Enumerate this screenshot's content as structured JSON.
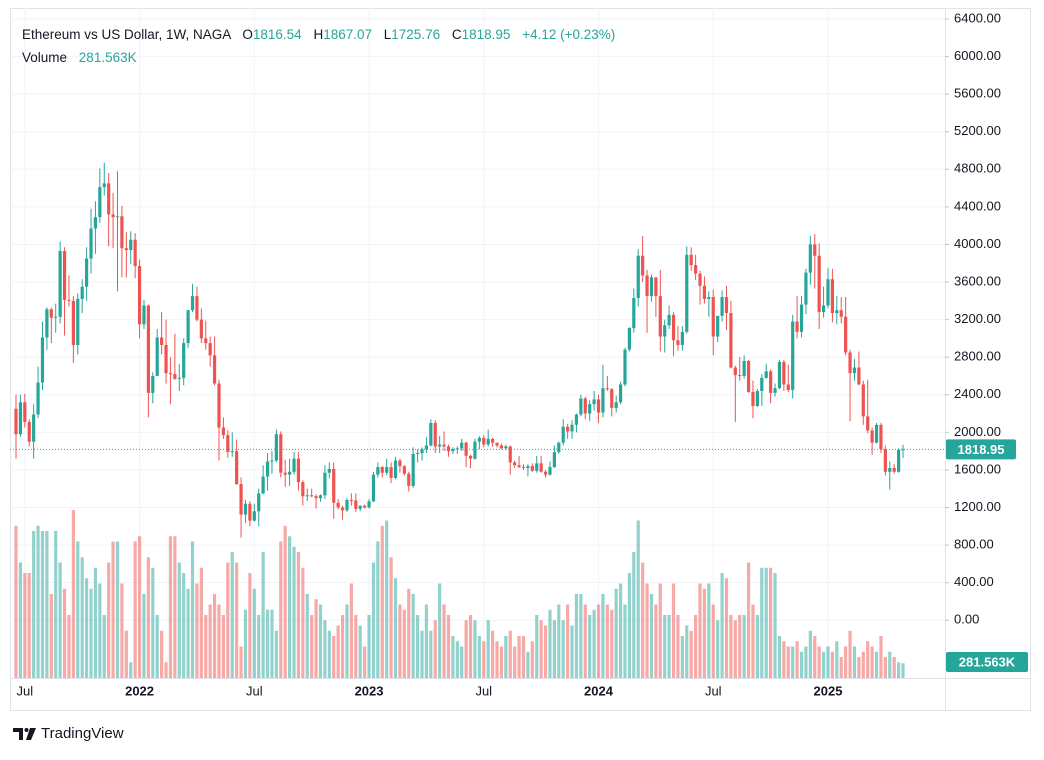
{
  "chart_data": {
    "type": "candlestick",
    "title": "Ethereum vs US Dollar, 1W, NAGA",
    "ohlc_labels": {
      "open": "O",
      "high": "H",
      "low": "L",
      "close": "C"
    },
    "change": "+4.12 (+0.23%)",
    "colors": {
      "up": "#26a69a",
      "down": "#ef5350"
    },
    "ylim": [
      -615,
      6517
    ],
    "yticks": [
      {
        "value": 0,
        "label": "0.00"
      },
      {
        "value": 400,
        "label": "400.00"
      },
      {
        "value": 800,
        "label": "800.00"
      },
      {
        "value": 1200,
        "label": "1200.00"
      },
      {
        "value": 1600,
        "label": "1600.00"
      },
      {
        "value": 2000,
        "label": "2000.00"
      },
      {
        "value": 2400,
        "label": "2400.00"
      },
      {
        "value": 2800,
        "label": "2800.00"
      },
      {
        "value": 3200,
        "label": "3200.00"
      },
      {
        "value": 3600,
        "label": "3600.00"
      },
      {
        "value": 4000,
        "label": "4000.00"
      },
      {
        "value": 4400,
        "label": "4400.00"
      },
      {
        "value": 4800,
        "label": "4800.00"
      },
      {
        "value": 5200,
        "label": "5200.00"
      },
      {
        "value": 5600,
        "label": "5600.00"
      },
      {
        "value": 6000,
        "label": "6000.00"
      },
      {
        "value": 6400,
        "label": "6400.00"
      }
    ],
    "grid": true,
    "categories": [
      null,
      null,
      "Jul",
      null,
      null,
      null,
      null,
      null,
      null,
      null,
      null,
      null,
      null,
      null,
      null,
      null,
      null,
      null,
      null,
      null,
      null,
      null,
      null,
      null,
      null,
      null,
      null,
      null,
      "2022",
      null,
      null,
      null,
      null,
      null,
      null,
      null,
      null,
      null,
      null,
      null,
      null,
      null,
      null,
      null,
      null,
      null,
      null,
      null,
      null,
      null,
      null,
      null,
      null,
      null,
      "Jul",
      null,
      null,
      null,
      null,
      null,
      null,
      null,
      null,
      null,
      null,
      null,
      null,
      null,
      null,
      null,
      null,
      null,
      null,
      null,
      null,
      null,
      null,
      null,
      null,
      null,
      "2023",
      null,
      null,
      null,
      null,
      null,
      null,
      null,
      null,
      null,
      null,
      null,
      null,
      null,
      null,
      null,
      null,
      null,
      null,
      null,
      null,
      null,
      null,
      null,
      null,
      null,
      "Jul",
      null,
      null,
      null,
      null,
      null,
      null,
      null,
      null,
      null,
      null,
      null,
      null,
      null,
      null,
      null,
      null,
      null,
      null,
      null,
      null,
      null,
      null,
      null,
      null,
      null,
      "2024",
      null,
      null,
      null,
      null,
      null,
      null,
      null,
      null,
      null,
      null,
      null,
      null,
      null,
      null,
      null,
      null,
      null,
      null,
      null,
      null,
      null,
      null,
      null,
      null,
      null,
      "Jul",
      null,
      null,
      null,
      null,
      null,
      null,
      null,
      null,
      null,
      null,
      null,
      null,
      null,
      null,
      null,
      null,
      null,
      null,
      null,
      null,
      null,
      null,
      null,
      null,
      null,
      "2025",
      null,
      null,
      null,
      null,
      null,
      null,
      null,
      null,
      null,
      null,
      null,
      null,
      null,
      null,
      null,
      null,
      null
    ],
    "open": [
      2250,
      1980,
      2320,
      2110,
      1900,
      2190,
      2530,
      3010,
      3310,
      3220,
      3230,
      3930,
      3410,
      3400,
      2930,
      3420,
      3550,
      3850,
      4170,
      4290,
      4610,
      4650,
      4320,
      4290,
      4300,
      3960,
      3940,
      4050,
      3770,
      3150,
      3350,
      2420,
      2600,
      3010,
      2930,
      2630,
      2620,
      2570,
      2580,
      2950,
      3300,
      3450,
      3200,
      3000,
      2950,
      2820,
      2520,
      2050,
      1970,
      1790,
      1800,
      1450,
      1125,
      1240,
      1060,
      1160,
      1350,
      1530,
      1690,
      1700,
      1980,
      1570,
      1550,
      1580,
      1720,
      1470,
      1320,
      1330,
      1320,
      1300,
      1330,
      1570,
      1610,
      1250,
      1200,
      1170,
      1280,
      1275,
      1185,
      1220,
      1200,
      1265,
      1550,
      1630,
      1570,
      1630,
      1515,
      1700,
      1640,
      1560,
      1430,
      1770,
      1780,
      1820,
      1860,
      2100,
      1850,
      1870,
      1850,
      1800,
      1820,
      1830,
      1890,
      1750,
      1720,
      1900,
      1940,
      1870,
      1930,
      1890,
      1860,
      1830,
      1850,
      1680,
      1650,
      1630,
      1620,
      1640,
      1590,
      1670,
      1580,
      1550,
      1630,
      1790,
      1890,
      2060,
      2010,
      2080,
      2190,
      2360,
      2200,
      2300,
      2350,
      2210,
      2470,
      2460,
      2260,
      2320,
      2510,
      2880,
      3110,
      3430,
      3880,
      3670,
      3450,
      3650,
      3450,
      3020,
      3140,
      3250,
      2980,
      2930,
      3070,
      3890,
      3780,
      3690,
      3560,
      3420,
      3440,
      3020,
      3240,
      3440,
      3270,
      2690,
      2610,
      2600,
      2760,
      2430,
      2280,
      2440,
      2580,
      2650,
      2420,
      2470,
      2750,
      2510,
      2450,
      3180,
      3070,
      3360,
      3700,
      4000,
      3880,
      3280,
      3350,
      3630,
      3270,
      3300,
      3230,
      2850,
      2630,
      2690,
      2510,
      2170,
      2020,
      1890,
      2080,
      1820,
      1580,
      1620,
      1580,
      1816.54
    ],
    "high": [
      2400,
      2400,
      2410,
      2140,
      2300,
      2700,
      3180,
      3330,
      3330,
      3370,
      4030,
      3970,
      3670,
      3450,
      3480,
      3630,
      3970,
      4380,
      4460,
      4810,
      4870,
      4760,
      4550,
      4780,
      4410,
      4130,
      4140,
      4120,
      3840,
      3410,
      3360,
      2640,
      3100,
      3280,
      3200,
      2800,
      3050,
      2730,
      3000,
      3300,
      3580,
      3550,
      3320,
      3190,
      3020,
      3020,
      2560,
      2160,
      2020,
      2000,
      1920,
      1520,
      1280,
      1270,
      1240,
      1400,
      1650,
      1780,
      1800,
      2030,
      2010,
      1710,
      1720,
      1790,
      1790,
      1490,
      1400,
      1400,
      1340,
      1340,
      1650,
      1680,
      1680,
      1290,
      1220,
      1300,
      1350,
      1350,
      1220,
      1230,
      1290,
      1580,
      1680,
      1640,
      1720,
      1680,
      1740,
      1720,
      1650,
      1580,
      1840,
      1820,
      1840,
      1950,
      2140,
      2130,
      1960,
      2010,
      1870,
      1840,
      1850,
      1930,
      1900,
      1760,
      1930,
      1960,
      1970,
      2030,
      1940,
      1890,
      1880,
      1870,
      1860,
      1700,
      1750,
      1660,
      1660,
      1670,
      1750,
      1750,
      1600,
      1690,
      1860,
      1900,
      2140,
      2090,
      2130,
      2200,
      2400,
      2380,
      2340,
      2440,
      2400,
      2720,
      2600,
      2470,
      2390,
      2540,
      2900,
      3120,
      3530,
      3950,
      4090,
      3730,
      3680,
      3650,
      3730,
      3200,
      3350,
      3280,
      3130,
      3130,
      3980,
      3970,
      3890,
      3720,
      3660,
      3500,
      3520,
      3220,
      3510,
      3560,
      3400,
      2710,
      2800,
      2820,
      2770,
      2550,
      2460,
      2620,
      2730,
      2670,
      2520,
      2770,
      2770,
      2720,
      3250,
      3450,
      3450,
      3740,
      4090,
      4110,
      4010,
      3550,
      3750,
      3740,
      3450,
      3440,
      3440,
      2880,
      2780,
      2860,
      2550,
      2560,
      2050,
      2100,
      2100,
      1860,
      1690,
      1660,
      1830,
      1867.07
    ],
    "low": [
      1720,
      1950,
      2050,
      1850,
      1720,
      2150,
      2450,
      2880,
      2950,
      3060,
      3160,
      3030,
      3340,
      2740,
      2830,
      3270,
      3400,
      3690,
      3900,
      4230,
      4520,
      3980,
      3960,
      3500,
      3650,
      3650,
      3790,
      3640,
      3000,
      3100,
      2160,
      2310,
      2600,
      2830,
      2520,
      2300,
      2560,
      2440,
      2500,
      2900,
      3280,
      3180,
      2950,
      2880,
      2700,
      2500,
      1700,
      1930,
      1730,
      1740,
      1440,
      880,
      1035,
      1000,
      1050,
      1000,
      1340,
      1380,
      1560,
      1680,
      1520,
      1420,
      1430,
      1550,
      1380,
      1220,
      1270,
      1310,
      1190,
      1260,
      1290,
      1510,
      1080,
      1180,
      1070,
      1150,
      1220,
      1150,
      1160,
      1190,
      1190,
      1260,
      1520,
      1520,
      1540,
      1460,
      1500,
      1570,
      1540,
      1370,
      1410,
      1680,
      1700,
      1780,
      1850,
      1780,
      1780,
      1800,
      1740,
      1770,
      1770,
      1800,
      1630,
      1620,
      1710,
      1820,
      1840,
      1850,
      1850,
      1840,
      1820,
      1810,
      1550,
      1620,
      1620,
      1600,
      1530,
      1580,
      1570,
      1570,
      1520,
      1540,
      1620,
      1770,
      1860,
      1930,
      1930,
      2000,
      2170,
      2140,
      2120,
      2230,
      2100,
      2160,
      2440,
      2170,
      2210,
      2300,
      2490,
      2860,
      3060,
      3340,
      3600,
      3060,
      3390,
      3230,
      2860,
      2850,
      3100,
      2810,
      2870,
      2870,
      3050,
      3720,
      3620,
      3360,
      3370,
      3230,
      2820,
      2960,
      3180,
      3090,
      2680,
      2110,
      2550,
      2570,
      2420,
      2150,
      2270,
      2280,
      2570,
      2310,
      2380,
      2460,
      2440,
      2430,
      2360,
      3000,
      3010,
      3260,
      3570,
      3530,
      3100,
      3220,
      3320,
      3170,
      3150,
      3160,
      2820,
      2120,
      2550,
      2500,
      2080,
      1990,
      1760,
      1880,
      1780,
      1540,
      1390,
      1560,
      1570,
      1725.76
    ],
    "close": [
      1980,
      2320,
      2110,
      1900,
      2190,
      2530,
      3010,
      3310,
      3220,
      3230,
      3930,
      3410,
      3400,
      2930,
      3420,
      3550,
      3850,
      4170,
      4290,
      4610,
      4650,
      4320,
      4290,
      4300,
      3960,
      3940,
      4050,
      3770,
      3150,
      3350,
      2420,
      2600,
      3010,
      2930,
      2630,
      2620,
      2570,
      2580,
      2950,
      3300,
      3450,
      3200,
      3000,
      2950,
      2820,
      2520,
      2050,
      1970,
      1790,
      1800,
      1450,
      1125,
      1240,
      1060,
      1160,
      1350,
      1530,
      1690,
      1700,
      1980,
      1570,
      1550,
      1580,
      1720,
      1470,
      1320,
      1330,
      1320,
      1300,
      1330,
      1570,
      1610,
      1250,
      1200,
      1170,
      1280,
      1275,
      1185,
      1220,
      1200,
      1265,
      1550,
      1630,
      1570,
      1630,
      1515,
      1700,
      1640,
      1560,
      1430,
      1770,
      1780,
      1820,
      1860,
      2100,
      1850,
      1870,
      1850,
      1800,
      1820,
      1830,
      1890,
      1750,
      1720,
      1900,
      1940,
      1870,
      1930,
      1890,
      1860,
      1830,
      1850,
      1680,
      1650,
      1630,
      1620,
      1640,
      1590,
      1670,
      1580,
      1550,
      1630,
      1790,
      1890,
      2060,
      2010,
      2080,
      2190,
      2360,
      2200,
      2300,
      2350,
      2210,
      2470,
      2460,
      2260,
      2320,
      2510,
      2880,
      3110,
      3430,
      3880,
      3670,
      3450,
      3650,
      3450,
      3020,
      3140,
      3250,
      2980,
      2930,
      3070,
      3890,
      3780,
      3690,
      3560,
      3420,
      3440,
      3020,
      3240,
      3440,
      3270,
      2690,
      2610,
      2600,
      2760,
      2430,
      2280,
      2440,
      2580,
      2650,
      2420,
      2470,
      2750,
      2510,
      2450,
      3180,
      3070,
      3360,
      3700,
      4000,
      3880,
      3280,
      3350,
      3630,
      3270,
      3300,
      3230,
      2850,
      2630,
      2690,
      2510,
      2170,
      2020,
      1890,
      2080,
      1820,
      1580,
      1620,
      1580,
      1814.83,
      1818.95
    ],
    "volume": {
      "name": "Volume",
      "last_label": "281.563K",
      "values": [
        2900,
        2200,
        2000,
        2000,
        2800,
        2900,
        2800,
        2800,
        1600,
        2800,
        2200,
        1700,
        1200,
        3200,
        2600,
        2300,
        1900,
        1700,
        2100,
        1800,
        1200,
        2200,
        2600,
        2600,
        1800,
        900,
        300,
        2600,
        2700,
        1600,
        2300,
        2100,
        1200,
        900,
        300,
        2700,
        2700,
        2200,
        2000,
        1700,
        2600,
        1800,
        2100,
        1200,
        1400,
        1600,
        1400,
        1200,
        2200,
        2400,
        2200,
        600,
        1300,
        2000,
        1700,
        1200,
        2400,
        1300,
        1300,
        900,
        2600,
        2900,
        2700,
        2500,
        2400,
        2100,
        1600,
        1200,
        1500,
        1400,
        1100,
        900,
        800,
        1000,
        1200,
        1400,
        1800,
        1200,
        1000,
        600,
        1200,
        2200,
        2600,
        2900,
        3000,
        2300,
        1900,
        1400,
        1300,
        1700,
        1600,
        1200,
        900,
        1400,
        900,
        1100,
        1800,
        1400,
        1200,
        800,
        700,
        600,
        1100,
        1200,
        1100,
        800,
        700,
        1100,
        900,
        700,
        600,
        800,
        900,
        600,
        800,
        800,
        500,
        700,
        1200,
        1100,
        1000,
        1300,
        1100,
        1400,
        1100,
        1400,
        1000,
        1600,
        1600,
        1400,
        1200,
        1300,
        1400,
        1600,
        1400,
        1300,
        1700,
        1800,
        1400,
        2000,
        2400,
        3000,
        2200,
        1800,
        1600,
        1400,
        1800,
        1200,
        1200,
        1800,
        1200,
        800,
        1000,
        900,
        1200,
        1800,
        1700,
        1800,
        1400,
        1100,
        2000,
        1900,
        1200,
        1100,
        1200,
        1200,
        2200,
        1400,
        1200,
        2100,
        2100,
        2100,
        2000,
        800,
        700,
        600,
        600,
        700,
        500,
        600,
        900,
        800,
        600,
        500,
        600,
        500,
        700,
        400,
        600,
        900,
        600,
        400,
        500,
        700,
        600,
        500,
        800,
        400,
        500,
        400,
        300,
        281.563
      ]
    }
  },
  "brand": "TradingView"
}
